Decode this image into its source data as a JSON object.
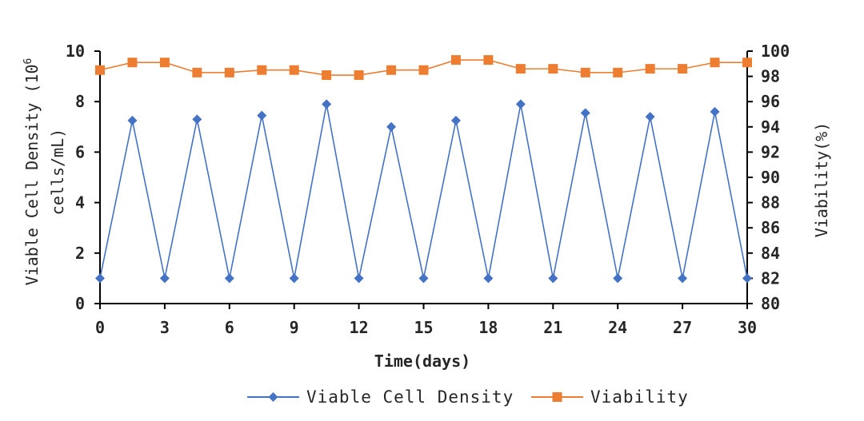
{
  "chart_data": {
    "type": "line",
    "x": [
      0,
      1.5,
      3,
      4.5,
      6,
      7.5,
      9,
      10.5,
      12,
      13.5,
      15,
      16.5,
      18,
      19.5,
      21,
      22.5,
      24,
      25.5,
      27,
      28.5,
      30
    ],
    "series": [
      {
        "name": "Viable Cell Density",
        "axis": "left",
        "color": "#4472C4",
        "marker": "diamond",
        "values": [
          1.0,
          7.25,
          1.0,
          7.3,
          1.0,
          7.45,
          1.0,
          7.9,
          1.0,
          7.0,
          1.0,
          7.25,
          1.0,
          7.9,
          1.0,
          7.55,
          1.0,
          7.4,
          1.0,
          7.6,
          1.0
        ]
      },
      {
        "name": "Viability",
        "axis": "right",
        "color": "#ED7D31",
        "marker": "square",
        "values": [
          98.5,
          99.1,
          99.1,
          98.3,
          98.3,
          98.5,
          98.5,
          98.1,
          98.1,
          98.5,
          98.5,
          99.3,
          99.3,
          98.6,
          98.6,
          98.3,
          98.3,
          98.6,
          98.6,
          99.1,
          99.1
        ]
      }
    ],
    "xlabel": "Time(days)",
    "ylabel_left_line1": "Viable Cell Density (10",
    "ylabel_left_sup": "6",
    "ylabel_left_line2": "cells/mL)",
    "ylabel_right": "Viability(%)",
    "xlim": [
      0,
      30
    ],
    "xticks": [
      0,
      3,
      6,
      9,
      12,
      15,
      18,
      21,
      24,
      27,
      30
    ],
    "ylim_left": [
      0,
      10
    ],
    "yticks_left": [
      0,
      2,
      4,
      6,
      8,
      10
    ],
    "ylim_right": [
      80,
      100
    ],
    "yticks_right": [
      80,
      82,
      84,
      86,
      88,
      90,
      92,
      94,
      96,
      98,
      100
    ],
    "grid": false,
    "legend_position": "bottom-center"
  }
}
